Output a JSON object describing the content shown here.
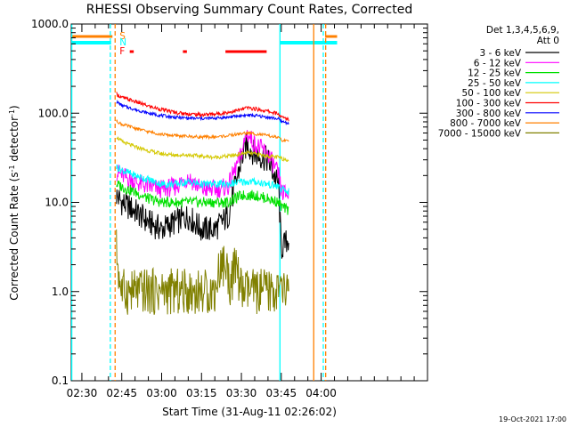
{
  "chart_data": {
    "type": "line",
    "title": "RHESSI Observing Summary Count Rates, Corrected",
    "xlabel": "Start Time (31-Aug-11 02:26:02)",
    "ylabel_main": "Corrected Count Rate (s",
    "ylabel_sup1": "-1",
    "ylabel_mid": " detector",
    "ylabel_sup2": "-1",
    "ylabel_end": ")",
    "yscale": "log",
    "ylim": [
      0.1,
      1000
    ],
    "xlim_min": [
      26,
      160
    ],
    "y_ticks": [
      {
        "value": 0.1,
        "label": "0.1"
      },
      {
        "value": 1,
        "label": "1.0"
      },
      {
        "value": 10,
        "label": "10.0"
      },
      {
        "value": 100,
        "label": "100.0"
      },
      {
        "value": 1000,
        "label": "1000.0"
      }
    ],
    "x_ticks": [
      {
        "value": 30,
        "label": "02:30"
      },
      {
        "value": 45,
        "label": "02:45"
      },
      {
        "value": 60,
        "label": "03:00"
      },
      {
        "value": 75,
        "label": "03:15"
      },
      {
        "value": 90,
        "label": "03:30"
      },
      {
        "value": 105,
        "label": "03:45"
      },
      {
        "value": 120,
        "label": "04:00"
      }
    ],
    "legend_header": [
      "Det 1,3,4,5,6,9,",
      "Att 0"
    ],
    "series": [
      {
        "name": "3 - 6 keV",
        "color": "#000000",
        "x": [
          43,
          45,
          50,
          55,
          60,
          65,
          70,
          75,
          80,
          85,
          90,
          92,
          95,
          100,
          104,
          105,
          108
        ],
        "y": [
          12,
          10,
          8,
          6,
          5,
          6,
          7,
          5,
          5,
          7,
          30,
          45,
          35,
          30,
          15,
          3,
          4
        ]
      },
      {
        "name": "6 - 12 keV",
        "color": "#ff00ff",
        "x": [
          43,
          45,
          50,
          55,
          60,
          65,
          70,
          75,
          80,
          85,
          90,
          92,
          95,
          100,
          104,
          105,
          108
        ],
        "y": [
          22,
          20,
          17,
          15,
          14,
          15,
          19,
          14,
          14,
          15,
          35,
          60,
          45,
          35,
          20,
          13,
          12
        ]
      },
      {
        "name": "12 - 25 keV",
        "color": "#00e000",
        "x": [
          43,
          45,
          50,
          55,
          60,
          65,
          70,
          75,
          80,
          85,
          90,
          92,
          95,
          100,
          104,
          105,
          108
        ],
        "y": [
          16,
          15,
          13,
          11,
          10,
          10,
          10,
          10,
          10,
          10,
          12,
          12,
          12,
          11,
          10,
          9,
          8
        ]
      },
      {
        "name": "25 - 50 keV",
        "color": "#00ffff",
        "x": [
          43,
          45,
          50,
          55,
          60,
          65,
          70,
          75,
          80,
          85,
          90,
          92,
          95,
          100,
          104,
          105,
          108
        ],
        "y": [
          25,
          23,
          20,
          18,
          16,
          16,
          17,
          16,
          16,
          16,
          17,
          17,
          17,
          16,
          15,
          14,
          13
        ]
      },
      {
        "name": "50 - 100 keV",
        "color": "#d4c800",
        "x": [
          43,
          45,
          50,
          55,
          60,
          65,
          70,
          75,
          80,
          85,
          90,
          92,
          95,
          100,
          104,
          105,
          108
        ],
        "y": [
          55,
          48,
          42,
          38,
          35,
          34,
          34,
          33,
          32,
          33,
          35,
          36,
          35,
          33,
          32,
          31,
          30
        ]
      },
      {
        "name": "100 - 300 keV",
        "color": "#ff0000",
        "x": [
          43,
          45,
          50,
          55,
          60,
          65,
          70,
          75,
          80,
          85,
          90,
          92,
          95,
          100,
          104,
          105,
          108
        ],
        "y": [
          165,
          150,
          135,
          120,
          110,
          102,
          98,
          96,
          98,
          102,
          110,
          115,
          112,
          105,
          98,
          90,
          85
        ]
      },
      {
        "name": "300 - 800 keV",
        "color": "#0000ff",
        "x": [
          43,
          45,
          50,
          55,
          60,
          65,
          70,
          75,
          80,
          85,
          90,
          92,
          95,
          100,
          104,
          105,
          108
        ],
        "y": [
          135,
          122,
          110,
          100,
          94,
          90,
          88,
          87,
          88,
          90,
          94,
          95,
          94,
          90,
          86,
          81,
          77
        ]
      },
      {
        "name": "800 - 7000 keV",
        "color": "#ff8000",
        "x": [
          43,
          45,
          50,
          55,
          60,
          65,
          70,
          75,
          80,
          85,
          90,
          92,
          95,
          100,
          104,
          105,
          108
        ],
        "y": [
          82,
          75,
          68,
          62,
          58,
          56,
          55,
          54,
          54,
          56,
          59,
          60,
          59,
          56,
          53,
          50,
          48
        ]
      },
      {
        "name": "7000 - 15000 keV",
        "color": "#808000",
        "x": [
          43,
          44,
          45,
          46,
          48,
          80,
          82,
          84,
          86,
          88,
          90,
          95,
          100,
          104,
          108
        ],
        "y": [
          3,
          1.5,
          1,
          1,
          1,
          1,
          2,
          2,
          1.2,
          2,
          1,
          1,
          1,
          1,
          1
        ]
      }
    ],
    "flags": [
      {
        "label": "S",
        "color": "#ff8000"
      },
      {
        "label": "N",
        "color": "#00ffff"
      },
      {
        "label": "F",
        "color": "#ff0000"
      }
    ],
    "flag_intervals": {
      "S": [
        [
          26,
          41.5
        ],
        [
          121.5,
          126
        ]
      ],
      "N": [
        [
          26,
          41
        ],
        [
          104.5,
          126
        ]
      ],
      "F": [
        [
          48,
          49.5
        ],
        [
          68,
          69.5
        ],
        [
          84,
          99.5
        ]
      ]
    },
    "vertical_markers": [
      {
        "x": 40.7,
        "color": "#00ffff",
        "style": "dashed"
      },
      {
        "x": 42.5,
        "color": "#ff8000",
        "style": "dashed"
      },
      {
        "x": 104.5,
        "color": "#00ffff",
        "style": "solid"
      },
      {
        "x": 117.2,
        "color": "#ff8000",
        "style": "solid"
      },
      {
        "x": 120.8,
        "color": "#00ffff",
        "style": "dashed"
      },
      {
        "x": 121.7,
        "color": "#ff8000",
        "style": "dashed"
      },
      {
        "x": 26.2,
        "color": "#00ffff",
        "style": "solid"
      }
    ],
    "footer_date": "19-Oct-2021 17:00"
  }
}
